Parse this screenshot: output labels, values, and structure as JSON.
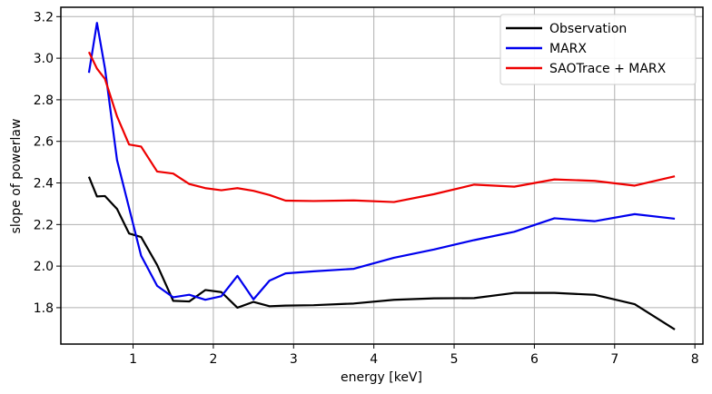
{
  "chart_data": {
    "type": "line",
    "xlabel": "energy [keV]",
    "ylabel": "slope of powerlaw",
    "xlim": [
      0.1,
      8.1
    ],
    "ylim": [
      1.625,
      3.245
    ],
    "xticks": [
      1,
      2,
      3,
      4,
      5,
      6,
      7,
      8
    ],
    "yticks": [
      1.8,
      2.0,
      2.2,
      2.4,
      2.6,
      2.8,
      3.0,
      3.2
    ],
    "grid": true,
    "legend_position": "top-right",
    "series": [
      {
        "name": "Observation",
        "color": "#000000",
        "x": [
          0.45,
          0.55,
          0.65,
          0.8,
          0.95,
          1.1,
          1.3,
          1.5,
          1.7,
          1.9,
          2.1,
          2.3,
          2.5,
          2.7,
          2.9,
          3.25,
          3.75,
          4.25,
          4.75,
          5.25,
          5.75,
          6.25,
          6.75,
          7.25,
          7.75
        ],
        "y": [
          2.43,
          2.335,
          2.337,
          2.275,
          2.157,
          2.14,
          2.005,
          1.833,
          1.83,
          1.885,
          1.875,
          1.8,
          1.828,
          1.807,
          1.81,
          1.812,
          1.82,
          1.838,
          1.845,
          1.846,
          1.871,
          1.871,
          1.862,
          1.817,
          1.695
        ]
      },
      {
        "name": "MARX",
        "color": "#0000ee",
        "x": [
          0.45,
          0.55,
          0.65,
          0.8,
          0.95,
          1.1,
          1.3,
          1.5,
          1.7,
          1.9,
          2.1,
          2.3,
          2.5,
          2.7,
          2.9,
          3.25,
          3.75,
          4.25,
          4.75,
          5.25,
          5.75,
          6.25,
          6.75,
          7.25,
          7.75
        ],
        "y": [
          2.93,
          3.17,
          2.95,
          2.51,
          2.28,
          2.05,
          1.905,
          1.85,
          1.862,
          1.838,
          1.855,
          1.953,
          1.84,
          1.93,
          1.965,
          1.975,
          1.987,
          2.04,
          2.08,
          2.125,
          2.165,
          2.23,
          2.216,
          2.25,
          2.228
        ]
      },
      {
        "name": "SAOTrace + MARX",
        "color": "#ee0000",
        "x": [
          0.45,
          0.55,
          0.65,
          0.8,
          0.95,
          1.1,
          1.3,
          1.5,
          1.7,
          1.9,
          2.1,
          2.3,
          2.5,
          2.7,
          2.9,
          3.25,
          3.75,
          4.25,
          4.75,
          5.25,
          5.75,
          6.25,
          6.75,
          7.25,
          7.75
        ],
        "y": [
          3.03,
          2.95,
          2.9,
          2.72,
          2.585,
          2.575,
          2.455,
          2.445,
          2.395,
          2.375,
          2.365,
          2.375,
          2.362,
          2.342,
          2.315,
          2.313,
          2.316,
          2.308,
          2.346,
          2.392,
          2.382,
          2.417,
          2.41,
          2.387,
          2.432
        ]
      }
    ]
  }
}
